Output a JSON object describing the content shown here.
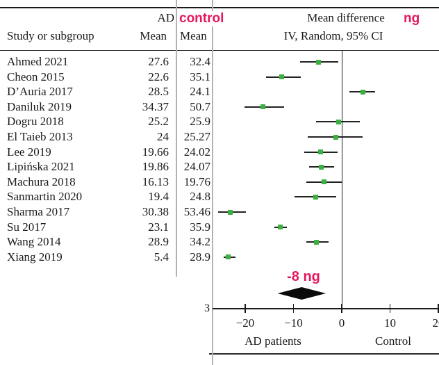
{
  "header": {
    "study_col": "Study or subgroup",
    "ad_group": "AD",
    "control_group": "control",
    "ad_mean_col": "Mean",
    "control_mean_col": "Mean",
    "effect_title": "Mean difference",
    "effect_unit": "ng",
    "effect_subtitle": "IV, Random, 95% CI"
  },
  "axis": {
    "left_group_label": "AD patients",
    "right_group_label": "Control",
    "clipped_glyph": "3"
  },
  "colors": {
    "accent_pink": "#e5175f",
    "marker_green": "#3cb043",
    "grid_gray": "#b3b3b3",
    "ink": "#1a1a1a"
  },
  "chart_data": {
    "type": "forest",
    "title": "Mean difference",
    "subtitle": "IV, Random, 95% CI",
    "unit": "ng",
    "x_axis": {
      "ticks": [
        -20,
        -10,
        0,
        10,
        20
      ],
      "tick_labels": [
        "−20",
        "−10",
        "0",
        "10",
        "20"
      ],
      "range_shown": [
        -27,
        20
      ],
      "zero_line": 0,
      "left_label": "AD patients",
      "right_label": "Control"
    },
    "studies": [
      {
        "name": "Ahmed 2021",
        "ad_mean": 27.6,
        "control_mean": 32.4,
        "md": -4.8,
        "ci": [
          -8.7,
          -0.7
        ]
      },
      {
        "name": "Cheon 2015",
        "ad_mean": 22.6,
        "control_mean": 35.1,
        "md": -12.5,
        "ci": [
          -15.7,
          -8.5
        ]
      },
      {
        "name": "D’Auria 2017",
        "ad_mean": 28.5,
        "control_mean": 24.1,
        "md": 4.4,
        "ci": [
          1.6,
          6.9
        ]
      },
      {
        "name": "Daniluk 2019",
        "ad_mean": 34.37,
        "control_mean": 50.7,
        "md": -16.33,
        "ci": [
          -20.2,
          -12.0
        ]
      },
      {
        "name": "Dogru 2018",
        "ad_mean": 25.2,
        "control_mean": 25.9,
        "md": -0.7,
        "ci": [
          -5.3,
          3.8
        ]
      },
      {
        "name": "El Taieb 2013",
        "ad_mean": 24,
        "control_mean": 25.27,
        "md": -1.27,
        "ci": [
          -7.0,
          4.3
        ]
      },
      {
        "name": "Lee 2019",
        "ad_mean": 19.66,
        "control_mean": 24.02,
        "md": -4.36,
        "ci": [
          -7.7,
          -0.8
        ]
      },
      {
        "name": "Lipińska 2021",
        "ad_mean": 19.86,
        "control_mean": 24.07,
        "md": -4.21,
        "ci": [
          -6.8,
          -1.6
        ]
      },
      {
        "name": "Machura 2018",
        "ad_mean": 16.13,
        "control_mean": 19.76,
        "md": -3.63,
        "ci": [
          -7.4,
          0.0
        ]
      },
      {
        "name": "Sanmartin 2020",
        "ad_mean": 19.4,
        "control_mean": 24.8,
        "md": -5.4,
        "ci": [
          -9.8,
          -1.2
        ]
      },
      {
        "name": "Sharma 2017",
        "ad_mean": 30.38,
        "control_mean": 53.46,
        "md": -23.08,
        "ci": [
          -25.6,
          -19.9
        ]
      },
      {
        "name": "Su 2017",
        "ad_mean": 23.1,
        "control_mean": 35.9,
        "md": -12.8,
        "ci": [
          -13.9,
          -11.3
        ]
      },
      {
        "name": "Wang 2014",
        "ad_mean": 28.9,
        "control_mean": 34.2,
        "md": -5.3,
        "ci": [
          -7.4,
          -2.7
        ]
      },
      {
        "name": "Xiang 2019",
        "ad_mean": 5.4,
        "control_mean": 28.9,
        "md": -23.5,
        "ci": [
          -24.4,
          -22.0
        ]
      }
    ],
    "summary": {
      "label": "-8 ng",
      "md": -8.3,
      "ci": [
        -13.3,
        -3.3
      ]
    }
  }
}
